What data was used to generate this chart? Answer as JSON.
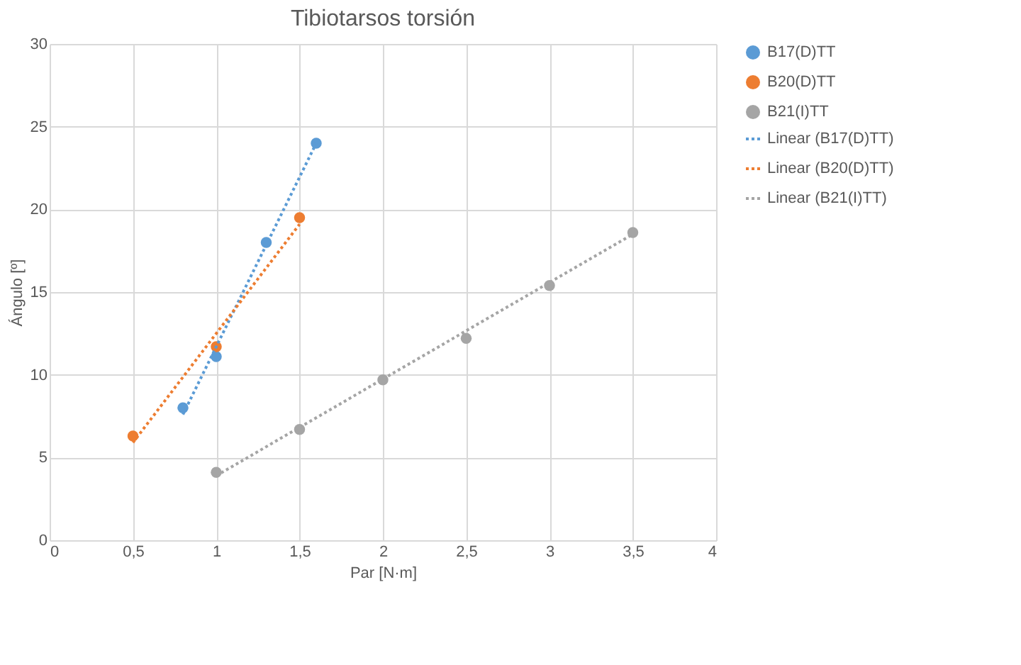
{
  "chart_data": {
    "type": "scatter",
    "title": "Tibiotarsos torsión",
    "xlabel": "Par [N·m]",
    "ylabel": "Ángulo [º]",
    "xlim": [
      0,
      4
    ],
    "xticks": [
      0,
      {
        "value": 0.5,
        "label": "0,5"
      },
      1,
      {
        "value": 1.5,
        "label": "1,5"
      },
      2,
      {
        "value": 2.5,
        "label": "2,5"
      },
      3,
      {
        "value": 3.5,
        "label": "3,5"
      },
      4
    ],
    "ylim": [
      0,
      30
    ],
    "yticks": [
      0,
      5,
      10,
      15,
      20,
      25,
      30
    ],
    "grid": true,
    "legend": "right",
    "marker": "circle",
    "series": [
      {
        "name": "B17(D)TT",
        "color": "#5b9bd5",
        "x": [
          0.8,
          1.0,
          1.3,
          1.6
        ],
        "values": [
          8.0,
          11.1,
          18.0,
          24.0
        ]
      },
      {
        "name": "B20(D)TT",
        "color": "#ed7d31",
        "x": [
          0.5,
          1.0,
          1.5
        ],
        "values": [
          6.3,
          11.7,
          19.5
        ]
      },
      {
        "name": "B21(I)TT",
        "color": "#a5a5a5",
        "x": [
          1.0,
          1.5,
          2.0,
          2.5,
          3.0,
          3.5
        ],
        "values": [
          4.1,
          6.7,
          9.7,
          12.2,
          15.4,
          18.6
        ]
      },
      {
        "name": "Linear (B17(D)TT)",
        "type": "line",
        "line_style": "dotted",
        "marker": "none",
        "color": "#5b9bd5",
        "x": [
          0.8,
          1.6
        ],
        "values": [
          7.6,
          24.0
        ]
      },
      {
        "name": "Linear (B20(D)TT)",
        "type": "line",
        "line_style": "dotted",
        "marker": "none",
        "color": "#ed7d31",
        "x": [
          0.5,
          1.5
        ],
        "values": [
          5.9,
          19.1
        ]
      },
      {
        "name": "Linear (B21(I)TT)",
        "type": "line",
        "line_style": "dotted",
        "marker": "none",
        "color": "#a5a5a5",
        "x": [
          1.0,
          3.5
        ],
        "values": [
          3.9,
          18.5
        ]
      }
    ]
  }
}
